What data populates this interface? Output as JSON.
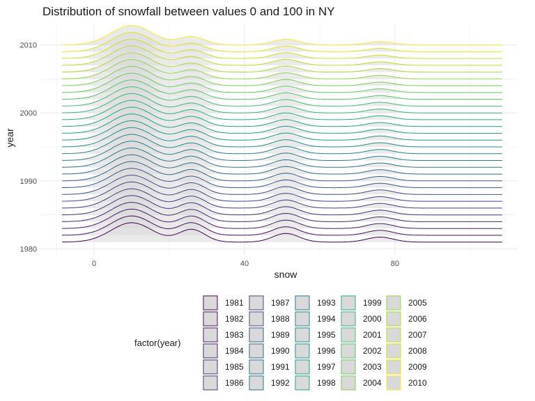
{
  "chart_data": {
    "type": "ridgeline",
    "title": "Distribution of snowfall between values 0 and 100 in NY",
    "xlabel": "snow",
    "ylabel": "year",
    "xlim": [
      -10,
      110
    ],
    "ylim": [
      1980,
      2012
    ],
    "x_ticks": [
      0,
      40,
      80
    ],
    "y_ticks": [
      1980,
      1990,
      2000,
      2010
    ],
    "grid": true,
    "legend_title": "factor(year)",
    "legend_position": "bottom",
    "fill_color": "#d9d9d9",
    "density_components": [
      {
        "mean": 10,
        "sd": 5.5,
        "weight": 0.85
      },
      {
        "mean": 26,
        "sd": 3.5,
        "weight": 0.55
      },
      {
        "mean": 51,
        "sd": 3.5,
        "weight": 0.38
      },
      {
        "mean": 76,
        "sd": 3.5,
        "weight": 0.22
      }
    ],
    "series": [
      {
        "name": "1981",
        "year": 1981,
        "color": "#440154"
      },
      {
        "name": "1982",
        "year": 1982,
        "color": "#470e61"
      },
      {
        "name": "1983",
        "year": 1983,
        "color": "#481b6d"
      },
      {
        "name": "1984",
        "year": 1984,
        "color": "#482576"
      },
      {
        "name": "1985",
        "year": 1985,
        "color": "#46307e"
      },
      {
        "name": "1986",
        "year": 1986,
        "color": "#443b84"
      },
      {
        "name": "1987",
        "year": 1987,
        "color": "#404588"
      },
      {
        "name": "1988",
        "year": 1988,
        "color": "#3c4f8a"
      },
      {
        "name": "1989",
        "year": 1989,
        "color": "#38598c"
      },
      {
        "name": "1990",
        "year": 1990,
        "color": "#33638d"
      },
      {
        "name": "1991",
        "year": 1991,
        "color": "#2f6c8e"
      },
      {
        "name": "1992",
        "year": 1992,
        "color": "#2b748e"
      },
      {
        "name": "1993",
        "year": 1993,
        "color": "#287d8e"
      },
      {
        "name": "1994",
        "year": 1994,
        "color": "#25858e"
      },
      {
        "name": "1995",
        "year": 1995,
        "color": "#228d8d"
      },
      {
        "name": "1996",
        "year": 1996,
        "color": "#1f968b"
      },
      {
        "name": "1997",
        "year": 1997,
        "color": "#1f9e89"
      },
      {
        "name": "1998",
        "year": 1998,
        "color": "#22a785"
      },
      {
        "name": "1999",
        "year": 1999,
        "color": "#29af7f"
      },
      {
        "name": "2000",
        "year": 2000,
        "color": "#35b779"
      },
      {
        "name": "2001",
        "year": 2001,
        "color": "#43bf71"
      },
      {
        "name": "2002",
        "year": 2002,
        "color": "#54c568"
      },
      {
        "name": "2003",
        "year": 2003,
        "color": "#66cb5d"
      },
      {
        "name": "2004",
        "year": 2004,
        "color": "#7ad151"
      },
      {
        "name": "2005",
        "year": 2005,
        "color": "#8fd744"
      },
      {
        "name": "2006",
        "year": 2006,
        "color": "#a5db36"
      },
      {
        "name": "2007",
        "year": 2007,
        "color": "#bade28"
      },
      {
        "name": "2008",
        "year": 2008,
        "color": "#d0e11c"
      },
      {
        "name": "2009",
        "year": 2009,
        "color": "#e4e419"
      },
      {
        "name": "2010",
        "year": 2010,
        "color": "#fde725"
      }
    ]
  }
}
